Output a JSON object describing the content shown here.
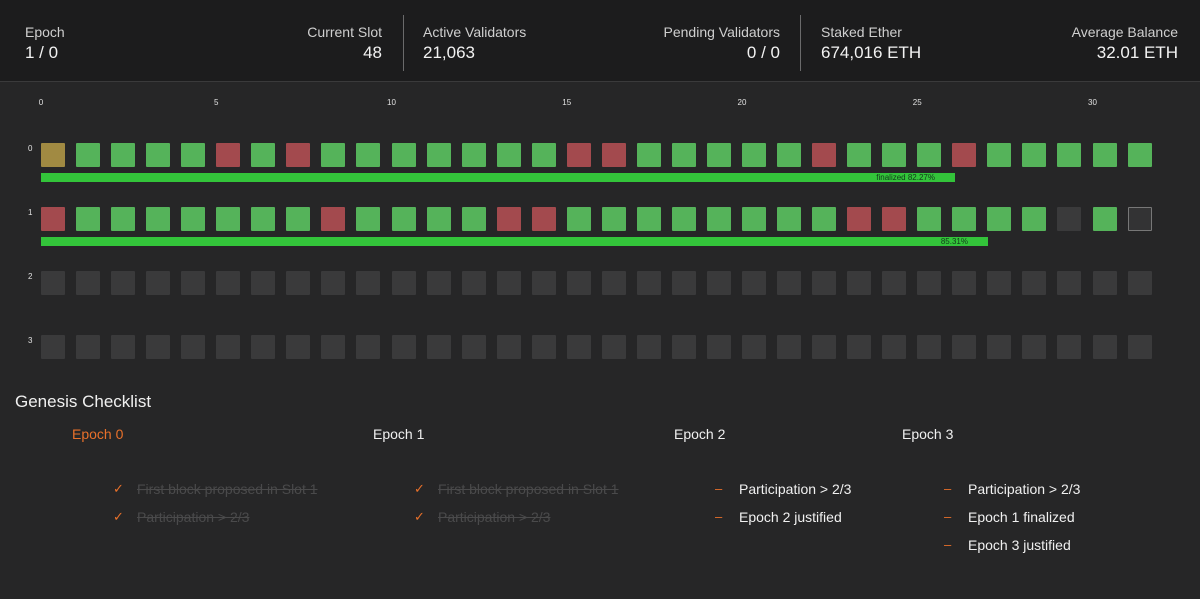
{
  "stats": {
    "epoch": {
      "label": "Epoch",
      "value": "1 / 0"
    },
    "current_slot": {
      "label": "Current Slot",
      "value": "48"
    },
    "active_validators": {
      "label": "Active Validators",
      "value": "21,063"
    },
    "pending_validators": {
      "label": "Pending Validators",
      "value": "0 / 0"
    },
    "staked_ether": {
      "label": "Staked Ether",
      "value": "674,016 ETH"
    },
    "average_balance": {
      "label": "Average Balance",
      "value": "32.01 ETH"
    }
  },
  "grid": {
    "axis_ticks": [
      "0",
      "5",
      "10",
      "15",
      "20",
      "25",
      "30"
    ],
    "rows": [
      {
        "label": "0",
        "slots": [
          "gold",
          "green",
          "green",
          "green",
          "green",
          "red",
          "green",
          "red",
          "green",
          "green",
          "green",
          "green",
          "green",
          "green",
          "green",
          "red",
          "red",
          "green",
          "green",
          "green",
          "green",
          "green",
          "red",
          "green",
          "green",
          "green",
          "red",
          "green",
          "green",
          "green",
          "green",
          "green"
        ],
        "participation": {
          "text": "finalized 82.27%",
          "value": 82.27
        }
      },
      {
        "label": "1",
        "slots": [
          "red",
          "green",
          "green",
          "green",
          "green",
          "green",
          "green",
          "green",
          "red",
          "green",
          "green",
          "green",
          "green",
          "red",
          "red",
          "green",
          "green",
          "green",
          "green",
          "green",
          "green",
          "green",
          "green",
          "red",
          "red",
          "green",
          "green",
          "green",
          "green",
          "empty",
          "green",
          "current"
        ],
        "participation": {
          "text": "85.31%",
          "value": 85.31
        }
      },
      {
        "label": "2",
        "slots": [
          "empty",
          "empty",
          "empty",
          "empty",
          "empty",
          "empty",
          "empty",
          "empty",
          "empty",
          "empty",
          "empty",
          "empty",
          "empty",
          "empty",
          "empty",
          "empty",
          "empty",
          "empty",
          "empty",
          "empty",
          "empty",
          "empty",
          "empty",
          "empty",
          "empty",
          "empty",
          "empty",
          "empty",
          "empty",
          "empty",
          "empty",
          "empty"
        ]
      },
      {
        "label": "3",
        "slots": [
          "empty",
          "empty",
          "empty",
          "empty",
          "empty",
          "empty",
          "empty",
          "empty",
          "empty",
          "empty",
          "empty",
          "empty",
          "empty",
          "empty",
          "empty",
          "empty",
          "empty",
          "empty",
          "empty",
          "empty",
          "empty",
          "empty",
          "empty",
          "empty",
          "empty",
          "empty",
          "empty",
          "empty",
          "empty",
          "empty",
          "empty",
          "empty"
        ]
      }
    ]
  },
  "checklist": {
    "title": "Genesis Checklist",
    "columns": [
      {
        "heading": "Epoch 0",
        "active": true,
        "items": [
          {
            "text": "First block proposed in Slot 1",
            "done": true
          },
          {
            "text": "Participation > 2/3",
            "done": true
          }
        ]
      },
      {
        "heading": "Epoch 1",
        "active": false,
        "items": [
          {
            "text": "First block proposed in Slot 1",
            "done": true
          },
          {
            "text": "Participation > 2/3",
            "done": true
          }
        ]
      },
      {
        "heading": "Epoch 2",
        "active": false,
        "items": [
          {
            "text": "Participation > 2/3",
            "done": false
          },
          {
            "text": "Epoch 2 justified",
            "done": false
          }
        ]
      },
      {
        "heading": "Epoch 3",
        "active": false,
        "items": [
          {
            "text": "Participation > 2/3",
            "done": false
          },
          {
            "text": "Epoch 1 finalized",
            "done": false
          },
          {
            "text": "Epoch 3 justified",
            "done": false
          }
        ]
      }
    ],
    "marks": {
      "done": "✓",
      "todo": "–"
    }
  },
  "colors": {
    "accent": "#e8702a",
    "slot_green": "#55b35a",
    "slot_red": "#a34a4e",
    "slot_gold": "#a18a42",
    "slot_empty": "#3a3a3b",
    "participation_bar": "#33c43a"
  }
}
